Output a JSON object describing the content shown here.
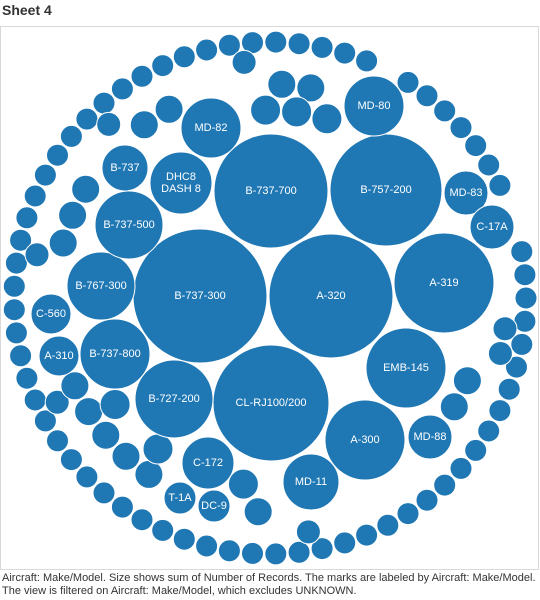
{
  "sheet": {
    "title": "Sheet 4"
  },
  "caption": "Aircraft: Make/Model.  Size shows sum of Number of Records.  The marks are labeled by Aircraft: Make/Model. The view is filtered on Aircraft: Make/Model, which excludes UNKNOWN.",
  "colors": {
    "bubble": "#1f77b4",
    "label": "#ffffff"
  },
  "chart_data": {
    "type": "packed-bubble",
    "title": "",
    "size_measure": "Number of Records",
    "items": [
      {
        "label": "B-737-300",
        "value": 100
      },
      {
        "label": "A-320",
        "value": 100
      },
      {
        "label": "B-737-700",
        "value": 65
      },
      {
        "label": "B-757-200",
        "value": 70
      },
      {
        "label": "CL-RJ100/200",
        "value": 58
      },
      {
        "label": "A-319",
        "value": 55
      },
      {
        "label": "EMB-145",
        "value": 31
      },
      {
        "label": "A-300",
        "value": 30
      },
      {
        "label": "B-727-200",
        "value": 26
      },
      {
        "label": "B-737-800",
        "value": 22
      },
      {
        "label": "B-767-300",
        "value": 19
      },
      {
        "label": "B-737-500",
        "value": 19
      },
      {
        "label": "DHC8 DASH 8",
        "value": 15
      },
      {
        "label": "MD-82",
        "value": 13
      },
      {
        "label": "MD-80",
        "value": 13
      },
      {
        "label": "MD-88",
        "value": 9
      },
      {
        "label": "MD-11",
        "value": 11
      },
      {
        "label": "C-172",
        "value": 11
      },
      {
        "label": "B-737",
        "value": 9
      },
      {
        "label": "MD-83",
        "value": 7
      },
      {
        "label": "C-17A",
        "value": 7
      },
      {
        "label": "C-560",
        "value": 5
      },
      {
        "label": "A-310",
        "value": 5
      },
      {
        "label": "T-1A",
        "value": 4
      },
      {
        "label": "DC-9",
        "value": 4
      }
    ],
    "unlabeled_note": ""
  }
}
